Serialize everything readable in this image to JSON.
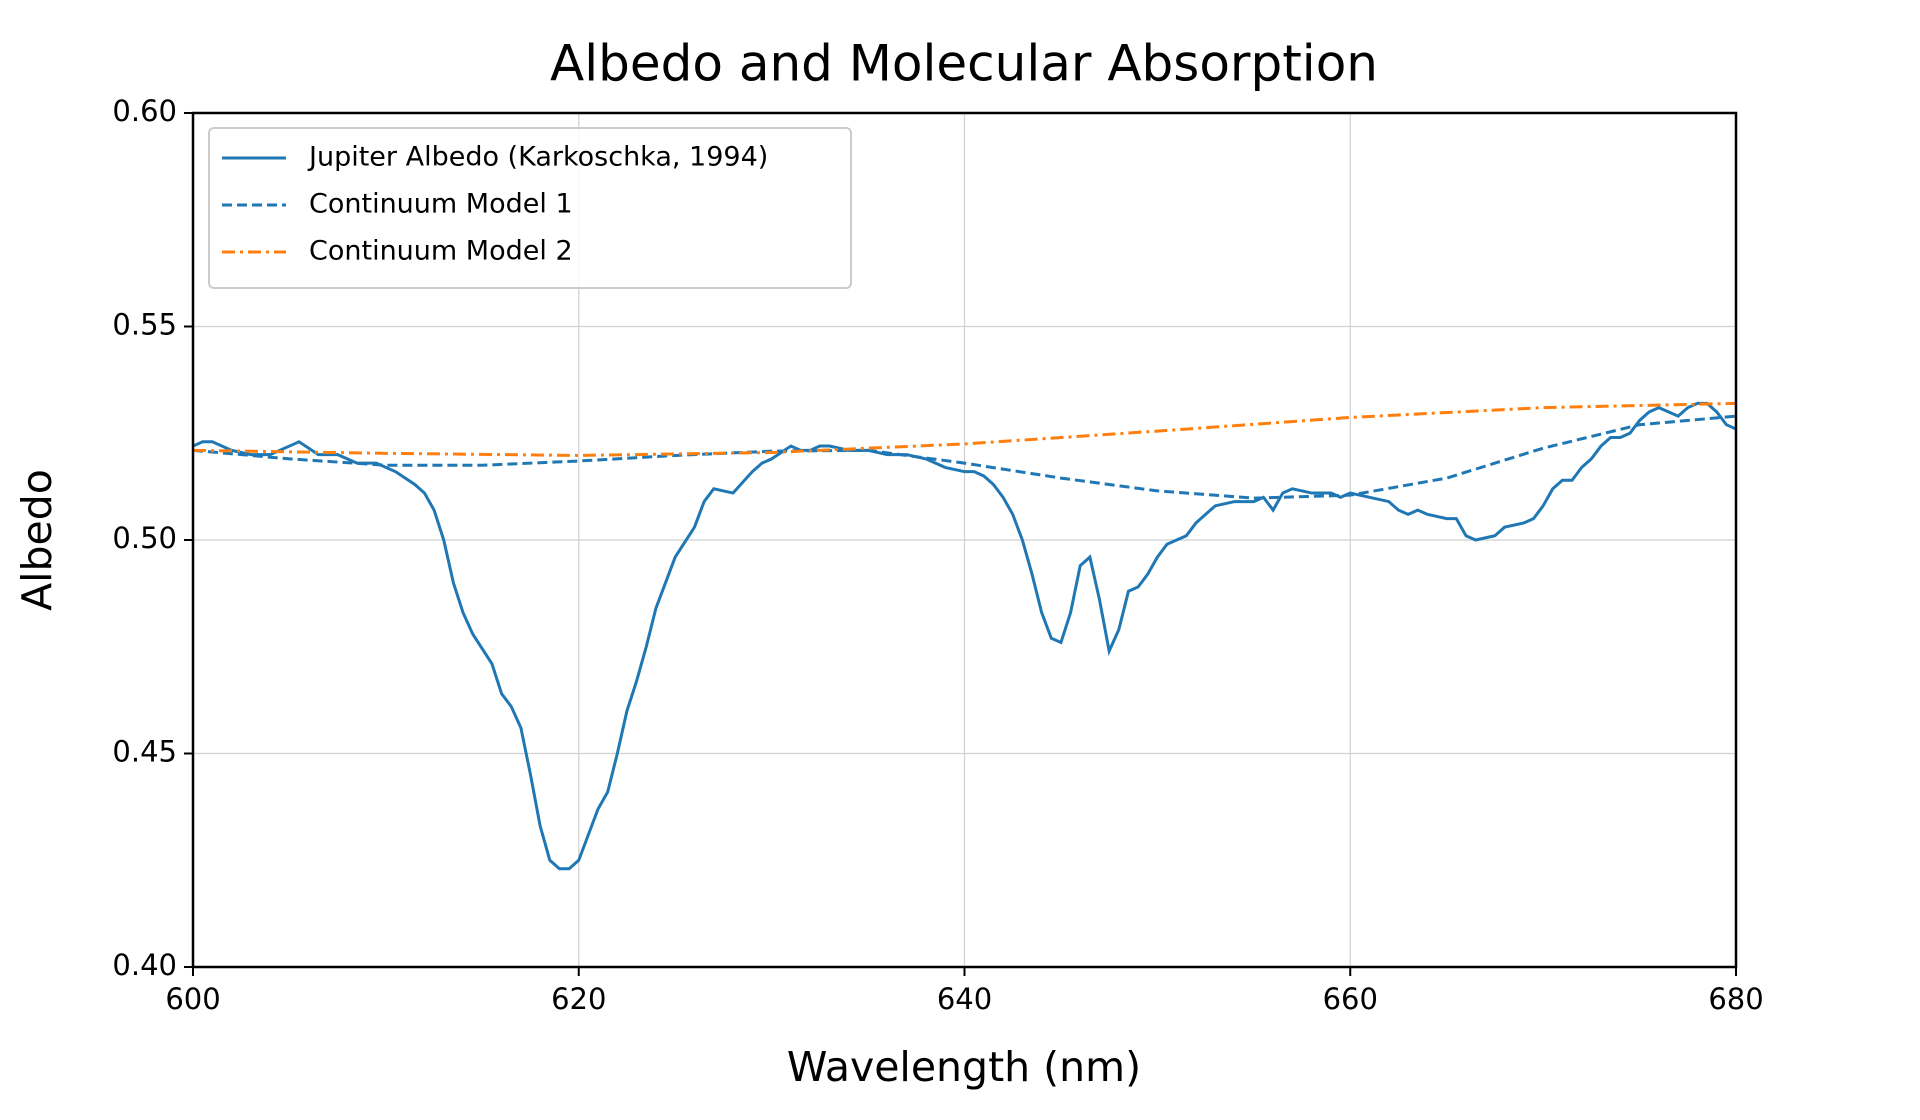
{
  "chart_data": {
    "type": "line",
    "title": "Albedo and Molecular Absorption",
    "xlabel": "Wavelength (nm)",
    "ylabel": "Albedo",
    "xlim": [
      600,
      680
    ],
    "xticks": [
      600,
      620,
      640,
      660,
      680
    ],
    "ylim": [
      0.4,
      0.6
    ],
    "yticks": [
      {
        "value": 0.4,
        "label": "0.40"
      },
      {
        "value": 0.45,
        "label": "0.45"
      },
      {
        "value": 0.5,
        "label": "0.50"
      },
      {
        "value": 0.55,
        "label": "0.55"
      },
      {
        "value": 0.6,
        "label": "0.60"
      }
    ],
    "grid": true,
    "legend": "upper-left",
    "series": [
      {
        "name": "Jupiter Albedo (Karkoschka, 1994)",
        "color": "#1f77b4",
        "linestyle": "solid",
        "x": [
          600,
          600.5,
          601,
          602,
          603,
          604,
          605,
          605.5,
          606.5,
          607.5,
          608.5,
          609.5,
          610.5,
          611.5,
          612,
          612.5,
          613,
          613.5,
          614,
          614.5,
          615.5,
          616,
          616.5,
          617,
          617.5,
          618,
          618.5,
          619,
          619.5,
          620,
          620.5,
          621,
          621.5,
          622,
          622.5,
          623,
          623.5,
          624,
          625,
          626,
          626.5,
          627,
          628,
          629,
          629.5,
          630,
          631,
          631.5,
          632,
          632.5,
          633,
          634,
          635,
          636,
          637,
          638,
          639,
          640,
          640.5,
          641,
          641.5,
          642,
          642.5,
          643,
          643.5,
          644,
          644.5,
          645,
          645.5,
          646,
          646.5,
          647,
          647.5,
          648,
          648.5,
          649,
          649.5,
          650,
          650.5,
          651,
          651.5,
          652,
          652.5,
          653,
          654,
          655,
          655.5,
          656,
          656.5,
          657,
          658,
          659,
          659.5,
          660,
          661,
          662,
          662.5,
          663,
          663.5,
          664,
          665,
          665.5,
          666,
          666.5,
          667.5,
          668,
          669,
          669.5,
          670,
          670.5,
          671,
          671.5,
          672,
          672.5,
          673,
          673.5,
          674,
          674.5,
          675,
          675.5,
          676,
          676.5,
          677,
          677.5,
          678,
          678.5,
          679,
          679.5,
          680
        ],
        "values": [
          0.522,
          0.523,
          0.523,
          0.521,
          0.52,
          0.52,
          0.522,
          0.523,
          0.52,
          0.52,
          0.518,
          0.518,
          0.516,
          0.513,
          0.511,
          0.507,
          0.5,
          0.49,
          0.483,
          0.478,
          0.471,
          0.464,
          0.461,
          0.456,
          0.445,
          0.433,
          0.425,
          0.423,
          0.423,
          0.425,
          0.431,
          0.437,
          0.441,
          0.45,
          0.46,
          0.467,
          0.475,
          0.484,
          0.496,
          0.503,
          0.509,
          0.512,
          0.511,
          0.516,
          0.518,
          0.519,
          0.522,
          0.521,
          0.521,
          0.522,
          0.522,
          0.521,
          0.521,
          0.52,
          0.52,
          0.519,
          0.517,
          0.516,
          0.516,
          0.515,
          0.513,
          0.51,
          0.506,
          0.5,
          0.492,
          0.483,
          0.477,
          0.476,
          0.483,
          0.494,
          0.496,
          0.486,
          0.474,
          0.479,
          0.488,
          0.489,
          0.492,
          0.496,
          0.499,
          0.5,
          0.501,
          0.504,
          0.506,
          0.508,
          0.509,
          0.509,
          0.51,
          0.507,
          0.511,
          0.512,
          0.511,
          0.511,
          0.51,
          0.511,
          0.51,
          0.509,
          0.507,
          0.506,
          0.507,
          0.506,
          0.505,
          0.505,
          0.501,
          0.5,
          0.501,
          0.503,
          0.504,
          0.505,
          0.508,
          0.512,
          0.514,
          0.514,
          0.517,
          0.519,
          0.522,
          0.524,
          0.524,
          0.525,
          0.528,
          0.53,
          0.531,
          0.53,
          0.529,
          0.531,
          0.532,
          0.532,
          0.53,
          0.527,
          0.526
        ]
      },
      {
        "name": "Continuum Model 1",
        "color": "#1f77b4",
        "linestyle": "dashed",
        "x": [
          600,
          605,
          610,
          615,
          620,
          625,
          630,
          635,
          640,
          645,
          650,
          655,
          660,
          665,
          670,
          675,
          680
        ],
        "values": [
          0.521,
          0.519,
          0.5175,
          0.5175,
          0.5185,
          0.5198,
          0.5208,
          0.521,
          0.518,
          0.5145,
          0.5115,
          0.5098,
          0.5105,
          0.5145,
          0.5215,
          0.527,
          0.529
        ]
      },
      {
        "name": "Continuum Model 2",
        "color": "#ff7f0e",
        "linestyle": "dashdot",
        "x": [
          600,
          610,
          620,
          630,
          640,
          650,
          660,
          670,
          680
        ],
        "values": [
          0.521,
          0.5203,
          0.5198,
          0.5205,
          0.5225,
          0.5255,
          0.5287,
          0.531,
          0.532
        ]
      }
    ]
  }
}
